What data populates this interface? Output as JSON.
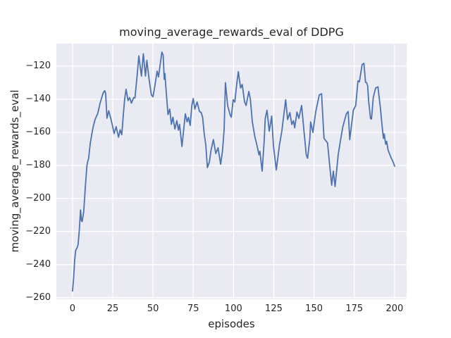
{
  "figure": {
    "title": "moving_average_rewards_eval of DDPG",
    "xlabel": "episodes",
    "ylabel": "moving_average_rewards_eval"
  },
  "chart_data": {
    "type": "line",
    "title": "moving_average_rewards_eval of DDPG",
    "xlabel": "episodes",
    "ylabel": "moving_average_rewards_eval",
    "grid": true,
    "legend_position": "none",
    "style": {
      "figure_background": "#ffffff",
      "axes_background": "#eaeaf2",
      "grid_color": "#ffffff",
      "text_color": "#262626",
      "line_color": "#4c72b0",
      "line_width": 1.8
    },
    "xlim": [
      -10,
      207.5
    ],
    "ylim": [
      -261,
      -106.4
    ],
    "xticks": [
      0,
      25,
      50,
      75,
      100,
      125,
      150,
      175,
      200
    ],
    "xtick_labels": [
      "0",
      "25",
      "50",
      "75",
      "100",
      "125",
      "150",
      "175",
      "200"
    ],
    "yticks": [
      -260,
      -240,
      -220,
      -200,
      -180,
      -160,
      -140,
      -120
    ],
    "ytick_labels": [
      "−260",
      "−240",
      "−220",
      "−200",
      "−180",
      "−160",
      "−140",
      "−120"
    ],
    "series": [
      {
        "name": "moving_average_rewards_eval",
        "color": "#4c72b0",
        "points": [
          [
            0,
            -256
          ],
          [
            0.7,
            -248
          ],
          [
            1.4,
            -237
          ],
          [
            2,
            -231.5
          ],
          [
            3,
            -229.5
          ],
          [
            3.5,
            -228
          ],
          [
            4.2,
            -220
          ],
          [
            5,
            -207
          ],
          [
            5.6,
            -213.5
          ],
          [
            6,
            -214
          ],
          [
            7,
            -208
          ],
          [
            8,
            -193
          ],
          [
            9,
            -180
          ],
          [
            9.6,
            -177
          ],
          [
            10,
            -176
          ],
          [
            11,
            -167
          ],
          [
            12,
            -161
          ],
          [
            13,
            -156
          ],
          [
            14,
            -152.5
          ],
          [
            15,
            -150
          ],
          [
            15.6,
            -149
          ],
          [
            16.3,
            -146
          ],
          [
            17,
            -143
          ],
          [
            18,
            -139.5
          ],
          [
            19,
            -136.3
          ],
          [
            20,
            -134.8
          ],
          [
            20.6,
            -136.5
          ],
          [
            21.4,
            -151.5
          ],
          [
            22.5,
            -147
          ],
          [
            23.5,
            -150.5
          ],
          [
            24.5,
            -154.5
          ],
          [
            25.9,
            -160.8
          ],
          [
            27.1,
            -156.6
          ],
          [
            28.6,
            -163
          ],
          [
            29.6,
            -158.5
          ],
          [
            30.6,
            -161.5
          ],
          [
            31.6,
            -149
          ],
          [
            32.4,
            -140
          ],
          [
            33.3,
            -134
          ],
          [
            34.5,
            -140.8
          ],
          [
            35.5,
            -139
          ],
          [
            36.6,
            -142.4
          ],
          [
            38,
            -139
          ],
          [
            38.8,
            -139.3
          ],
          [
            40,
            -127
          ],
          [
            41.2,
            -113.8
          ],
          [
            42.8,
            -126
          ],
          [
            44,
            -112.5
          ],
          [
            45.3,
            -126
          ],
          [
            46.2,
            -116.5
          ],
          [
            47.5,
            -127.5
          ],
          [
            49,
            -137.4
          ],
          [
            50,
            -138.5
          ],
          [
            51.2,
            -131.8
          ],
          [
            52.6,
            -123
          ],
          [
            53.4,
            -126.5
          ],
          [
            54,
            -122.6
          ],
          [
            55.5,
            -111.5
          ],
          [
            56.3,
            -113.3
          ],
          [
            57,
            -128
          ],
          [
            57.4,
            -124.5
          ],
          [
            58.2,
            -135
          ],
          [
            59.3,
            -149.3
          ],
          [
            60.4,
            -146
          ],
          [
            61.4,
            -155.2
          ],
          [
            62.4,
            -150.9
          ],
          [
            63.6,
            -158
          ],
          [
            64.8,
            -153
          ],
          [
            65.8,
            -158.7
          ],
          [
            66.5,
            -155.2
          ],
          [
            68,
            -168.6
          ],
          [
            70.1,
            -148.8
          ],
          [
            71.2,
            -153.7
          ],
          [
            72,
            -151
          ],
          [
            73.1,
            -155.9
          ],
          [
            74.1,
            -143.8
          ],
          [
            75,
            -139.6
          ],
          [
            76,
            -146
          ],
          [
            77.4,
            -141.7
          ],
          [
            78.9,
            -147.4
          ],
          [
            79.9,
            -148
          ],
          [
            80.8,
            -150.9
          ],
          [
            81.8,
            -160.9
          ],
          [
            82.8,
            -167.9
          ],
          [
            83.8,
            -181.4
          ],
          [
            85,
            -178
          ],
          [
            86,
            -171
          ],
          [
            87.5,
            -164.4
          ],
          [
            89,
            -172.9
          ],
          [
            90.4,
            -169.4
          ],
          [
            92,
            -179.3
          ],
          [
            93.2,
            -171
          ],
          [
            94.2,
            -158
          ],
          [
            95,
            -130
          ],
          [
            96.4,
            -144
          ],
          [
            97.9,
            -149.5
          ],
          [
            98.6,
            -150.9
          ],
          [
            99.8,
            -140.3
          ],
          [
            100.8,
            -141.7
          ],
          [
            102,
            -131
          ],
          [
            103,
            -123.3
          ],
          [
            104.4,
            -133.2
          ],
          [
            105.4,
            -131.1
          ],
          [
            106.9,
            -141.7
          ],
          [
            107.8,
            -143.8
          ],
          [
            109.5,
            -135.3
          ],
          [
            110.5,
            -140
          ],
          [
            111.7,
            -153.8
          ],
          [
            113.2,
            -162.3
          ],
          [
            114.6,
            -168
          ],
          [
            115.8,
            -173.6
          ],
          [
            116.4,
            -171.5
          ],
          [
            117.8,
            -183.5
          ],
          [
            119,
            -166
          ],
          [
            119.7,
            -151.6
          ],
          [
            120.8,
            -146.7
          ],
          [
            122.2,
            -159.4
          ],
          [
            123.7,
            -150.2
          ],
          [
            124.8,
            -167.9
          ],
          [
            126.6,
            -182.8
          ],
          [
            128.5,
            -167.9
          ],
          [
            130,
            -159.4
          ],
          [
            132.4,
            -140.3
          ],
          [
            133.6,
            -152.3
          ],
          [
            135,
            -148.1
          ],
          [
            136.2,
            -155.2
          ],
          [
            137.2,
            -153
          ],
          [
            138,
            -157.3
          ],
          [
            139.4,
            -147.8
          ],
          [
            140.6,
            -151.6
          ],
          [
            142.3,
            -143.8
          ],
          [
            143.8,
            -159.4
          ],
          [
            145.2,
            -173.6
          ],
          [
            146,
            -175.7
          ],
          [
            147.4,
            -163.7
          ],
          [
            147.9,
            -153.7
          ],
          [
            149.3,
            -160.1
          ],
          [
            151.1,
            -147.4
          ],
          [
            153.3,
            -137.4
          ],
          [
            154.7,
            -136.7
          ],
          [
            156.2,
            -163.7
          ],
          [
            158.4,
            -166.5
          ],
          [
            159.8,
            -180.7
          ],
          [
            161,
            -192
          ],
          [
            162,
            -183.5
          ],
          [
            163.1,
            -192.8
          ],
          [
            165,
            -173.6
          ],
          [
            166.4,
            -165.1
          ],
          [
            167.9,
            -156.6
          ],
          [
            170.1,
            -148.8
          ],
          [
            171.2,
            -147.4
          ],
          [
            172.2,
            -164.4
          ],
          [
            174.4,
            -146.7
          ],
          [
            175.9,
            -143.8
          ],
          [
            177.3,
            -128.9
          ],
          [
            178.2,
            -129.5
          ],
          [
            179.9,
            -119
          ],
          [
            181,
            -118.3
          ],
          [
            182,
            -129.7
          ],
          [
            182.7,
            -130
          ],
          [
            183.3,
            -131.8
          ],
          [
            183.9,
            -141
          ],
          [
            185.1,
            -151.6
          ],
          [
            185.7,
            -152
          ],
          [
            186.8,
            -138.9
          ],
          [
            188.3,
            -133.2
          ],
          [
            189.7,
            -132.5
          ],
          [
            191.2,
            -145.2
          ],
          [
            192.2,
            -155.2
          ],
          [
            193.1,
            -163.7
          ],
          [
            193.6,
            -161
          ],
          [
            194.5,
            -167.2
          ],
          [
            195.1,
            -165.5
          ],
          [
            196,
            -170.8
          ],
          [
            197.7,
            -175
          ],
          [
            199.4,
            -178.6
          ],
          [
            200,
            -180.5
          ]
        ]
      }
    ]
  }
}
